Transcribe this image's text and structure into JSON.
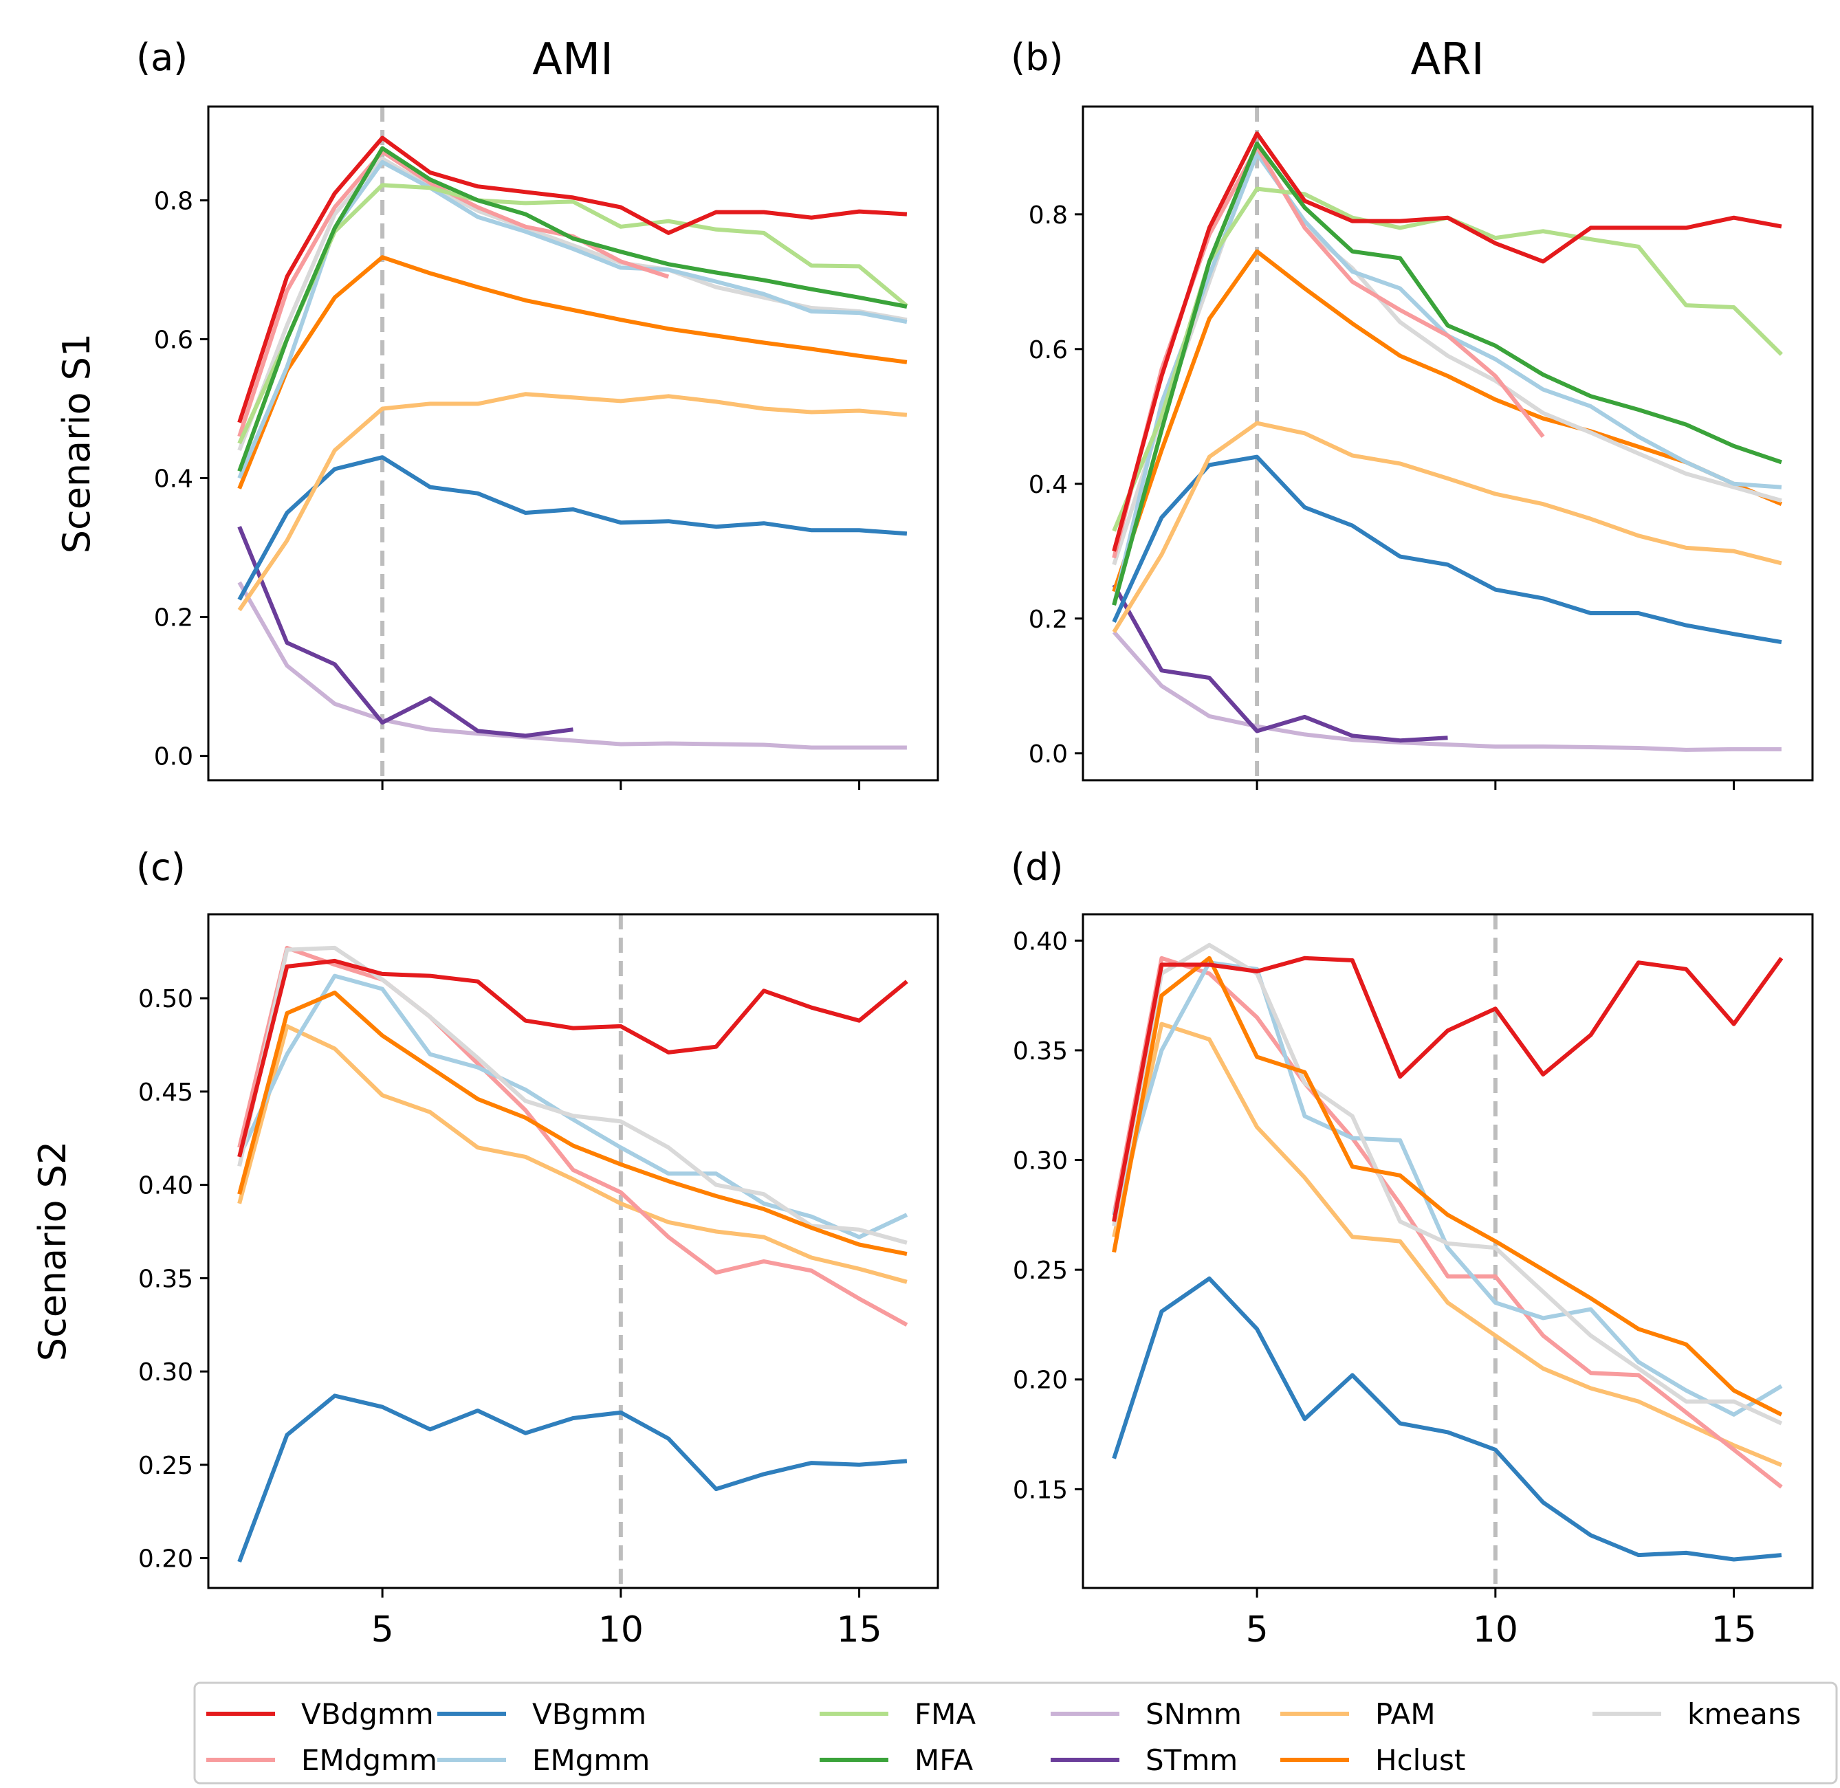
{
  "chart_data": {
    "type": "line",
    "x": [
      2,
      3,
      4,
      5,
      6,
      7,
      8,
      9,
      10,
      11,
      12,
      13,
      14,
      15,
      16
    ],
    "xticks": [
      "5",
      "10",
      "15"
    ],
    "xlim": [
      1.35,
      16.65
    ],
    "row_labels": [
      "Scenario S1",
      "Scenario S2"
    ],
    "series_styles": {
      "VBdgmm": "#e41a1c",
      "EMdgmm": "#f89b9d",
      "VBgmm": "#2f7fbd",
      "EMgmm": "#a6cee3",
      "FMA": "#b2df8a",
      "MFA": "#3aa33a",
      "SNmm": "#cab2d6",
      "STmm": "#6a3d9a",
      "PAM": "#fdbf6f",
      "Hclust": "#ff7f00",
      "kmeans": "#d9d9d9"
    },
    "legend": {
      "placement": "bottom",
      "entries": [
        "VBdgmm",
        "EMdgmm",
        "VBgmm",
        "EMgmm",
        "FMA",
        "MFA",
        "SNmm",
        "STmm",
        "PAM",
        "Hclust",
        "kmeans"
      ]
    },
    "panels": [
      {
        "letter": "(a)",
        "title": "AMI",
        "ylabel": "Scenario S1",
        "ylim": [
          -0.035,
          0.935
        ],
        "yticks": [
          "0.0",
          "0.2",
          "0.4",
          "0.6",
          "0.8"
        ],
        "yvals": [
          0.0,
          0.2,
          0.4,
          0.6,
          0.8
        ],
        "vline": 5,
        "series": [
          {
            "name": "SNmm",
            "values": [
              0.25,
              0.13,
              0.075,
              0.052,
              0.038,
              0.032,
              0.027,
              0.022,
              0.017,
              0.018,
              0.017,
              0.016,
              0.012,
              0.012,
              0.012
            ]
          },
          {
            "name": "STmm",
            "values": [
              0.33,
              0.163,
              0.132,
              0.048,
              0.083,
              0.036,
              0.029,
              0.038
            ]
          },
          {
            "name": "VBgmm",
            "values": [
              0.225,
              0.35,
              0.413,
              0.43,
              0.387,
              0.378,
              0.35,
              0.355,
              0.336,
              0.338,
              0.33,
              0.335,
              0.325,
              0.325,
              0.32
            ]
          },
          {
            "name": "PAM",
            "values": [
              0.21,
              0.31,
              0.44,
              0.5,
              0.507,
              0.507,
              0.521,
              0.516,
              0.511,
              0.518,
              0.51,
              0.5,
              0.495,
              0.497,
              0.491
            ]
          },
          {
            "name": "Hclust",
            "values": [
              0.385,
              0.555,
              0.66,
              0.718,
              0.695,
              0.675,
              0.656,
              0.642,
              0.628,
              0.615,
              0.605,
              0.595,
              0.586,
              0.576,
              0.567
            ]
          },
          {
            "name": "kmeans",
            "values": [
              0.44,
              0.62,
              0.78,
              0.86,
              0.82,
              0.785,
              0.76,
              0.735,
              0.71,
              0.7,
              0.675,
              0.66,
              0.645,
              0.64,
              0.628
            ]
          },
          {
            "name": "EMgmm",
            "values": [
              0.4,
              0.56,
              0.76,
              0.855,
              0.818,
              0.776,
              0.755,
              0.73,
              0.703,
              0.7,
              0.683,
              0.665,
              0.64,
              0.638,
              0.625
            ]
          },
          {
            "name": "EMdgmm",
            "values": [
              0.46,
              0.67,
              0.79,
              0.87,
              0.825,
              0.79,
              0.762,
              0.748,
              0.712,
              0.69
            ]
          },
          {
            "name": "FMA",
            "values": [
              0.45,
              0.6,
              0.755,
              0.822,
              0.818,
              0.8,
              0.796,
              0.798,
              0.762,
              0.77,
              0.758,
              0.753,
              0.706,
              0.705,
              0.648
            ]
          },
          {
            "name": "MFA",
            "values": [
              0.41,
              0.6,
              0.76,
              0.875,
              0.83,
              0.8,
              0.78,
              0.745,
              0.726,
              0.708,
              0.696,
              0.685,
              0.672,
              0.66,
              0.647
            ]
          },
          {
            "name": "VBdgmm",
            "values": [
              0.48,
              0.69,
              0.81,
              0.89,
              0.84,
              0.82,
              0.812,
              0.804,
              0.79,
              0.753,
              0.783,
              0.783,
              0.775,
              0.784,
              0.78
            ]
          }
        ]
      },
      {
        "letter": "(b)",
        "title": "ARI",
        "ylabel": "",
        "ylim": [
          -0.04,
          0.96
        ],
        "yticks": [
          "0.0",
          "0.2",
          "0.4",
          "0.6",
          "0.8"
        ],
        "yvals": [
          0.0,
          0.2,
          0.4,
          0.6,
          0.8
        ],
        "vline": 5,
        "series": [
          {
            "name": "SNmm",
            "values": [
              0.18,
              0.1,
              0.055,
              0.04,
              0.028,
              0.02,
              0.016,
              0.013,
              0.01,
              0.01,
              0.009,
              0.008,
              0.005,
              0.006,
              0.006
            ]
          },
          {
            "name": "STmm",
            "values": [
              0.25,
              0.123,
              0.112,
              0.033,
              0.054,
              0.026,
              0.019,
              0.023
            ]
          },
          {
            "name": "VBgmm",
            "values": [
              0.195,
              0.35,
              0.428,
              0.44,
              0.365,
              0.338,
              0.292,
              0.28,
              0.243,
              0.23,
              0.208,
              0.208,
              0.19,
              0.177,
              0.165
            ]
          },
          {
            "name": "PAM",
            "values": [
              0.18,
              0.295,
              0.44,
              0.49,
              0.475,
              0.442,
              0.43,
              0.408,
              0.385,
              0.37,
              0.348,
              0.323,
              0.305,
              0.3,
              0.282
            ]
          },
          {
            "name": "Hclust",
            "values": [
              0.24,
              0.45,
              0.645,
              0.745,
              0.69,
              0.638,
              0.59,
              0.56,
              0.525,
              0.497,
              0.478,
              0.455,
              0.432,
              0.4,
              0.37
            ]
          },
          {
            "name": "kmeans",
            "values": [
              0.28,
              0.5,
              0.7,
              0.9,
              0.78,
              0.72,
              0.64,
              0.59,
              0.553,
              0.505,
              0.476,
              0.445,
              0.415,
              0.395,
              0.375
            ]
          },
          {
            "name": "EMgmm",
            "values": [
              0.22,
              0.52,
              0.71,
              0.89,
              0.79,
              0.715,
              0.69,
              0.62,
              0.585,
              0.54,
              0.515,
              0.47,
              0.432,
              0.4,
              0.395
            ]
          },
          {
            "name": "EMdgmm",
            "values": [
              0.29,
              0.57,
              0.77,
              0.9,
              0.78,
              0.7,
              0.658,
              0.62,
              0.56,
              0.47
            ]
          },
          {
            "name": "FMA",
            "values": [
              0.33,
              0.5,
              0.73,
              0.838,
              0.83,
              0.795,
              0.78,
              0.795,
              0.765,
              0.775,
              0.763,
              0.752,
              0.665,
              0.662,
              0.592
            ]
          },
          {
            "name": "MFA",
            "values": [
              0.22,
              0.48,
              0.73,
              0.905,
              0.81,
              0.745,
              0.735,
              0.635,
              0.605,
              0.562,
              0.53,
              0.51,
              0.488,
              0.456,
              0.432
            ]
          },
          {
            "name": "VBdgmm",
            "values": [
              0.3,
              0.56,
              0.78,
              0.92,
              0.82,
              0.79,
              0.79,
              0.795,
              0.757,
              0.73,
              0.78,
              0.78,
              0.78,
              0.795,
              0.782
            ]
          }
        ]
      },
      {
        "letter": "(c)",
        "title": "",
        "ylabel": "Scenario S2",
        "ylim": [
          0.184,
          0.545
        ],
        "yticks": [
          "0.20",
          "0.25",
          "0.30",
          "0.35",
          "0.40",
          "0.45",
          "0.50"
        ],
        "yvals": [
          0.2,
          0.25,
          0.3,
          0.35,
          0.4,
          0.45,
          0.5
        ],
        "vline": 10,
        "series": [
          {
            "name": "VBgmm",
            "values": [
              0.198,
              0.266,
              0.287,
              0.281,
              0.269,
              0.279,
              0.267,
              0.275,
              0.278,
              0.264,
              0.237,
              0.245,
              0.251,
              0.25,
              0.252
            ]
          },
          {
            "name": "PAM",
            "values": [
              0.39,
              0.485,
              0.473,
              0.448,
              0.439,
              0.42,
              0.415,
              0.403,
              0.39,
              0.38,
              0.375,
              0.372,
              0.361,
              0.355,
              0.348
            ]
          },
          {
            "name": "EMdgmm",
            "values": [
              0.42,
              0.527,
              0.518,
              0.51,
              0.49,
              0.465,
              0.44,
              0.408,
              0.396,
              0.372,
              0.353,
              0.359,
              0.354,
              0.339,
              0.325
            ]
          },
          {
            "name": "EMgmm",
            "values": [
              0.415,
              0.47,
              0.512,
              0.505,
              0.47,
              0.463,
              0.451,
              0.435,
              0.42,
              0.406,
              0.406,
              0.39,
              0.383,
              0.372,
              0.384
            ]
          },
          {
            "name": "kmeans",
            "values": [
              0.41,
              0.526,
              0.527,
              0.51,
              0.49,
              0.468,
              0.445,
              0.437,
              0.434,
              0.42,
              0.4,
              0.395,
              0.378,
              0.376,
              0.369
            ]
          },
          {
            "name": "Hclust",
            "values": [
              0.395,
              0.492,
              0.503,
              0.48,
              0.463,
              0.446,
              0.436,
              0.421,
              0.411,
              0.402,
              0.394,
              0.387,
              0.377,
              0.368,
              0.363
            ]
          },
          {
            "name": "VBdgmm",
            "values": [
              0.415,
              0.517,
              0.52,
              0.513,
              0.512,
              0.509,
              0.488,
              0.484,
              0.485,
              0.471,
              0.474,
              0.504,
              0.495,
              0.488,
              0.509
            ]
          }
        ]
      },
      {
        "letter": "(d)",
        "title": "",
        "ylabel": "",
        "ylim": [
          0.105,
          0.412
        ],
        "yticks": [
          "0.15",
          "0.20",
          "0.25",
          "0.30",
          "0.35",
          "0.40"
        ],
        "yvals": [
          0.15,
          0.2,
          0.25,
          0.3,
          0.35,
          0.4
        ],
        "vline": 10,
        "series": [
          {
            "name": "VBgmm",
            "values": [
              0.164,
              0.231,
              0.246,
              0.223,
              0.182,
              0.202,
              0.18,
              0.176,
              0.168,
              0.144,
              0.129,
              0.12,
              0.121,
              0.118,
              0.12
            ]
          },
          {
            "name": "PAM",
            "values": [
              0.265,
              0.362,
              0.355,
              0.315,
              0.292,
              0.265,
              0.263,
              0.235,
              0.22,
              0.205,
              0.196,
              0.19,
              0.18,
              0.17,
              0.161
            ]
          },
          {
            "name": "EMdgmm",
            "values": [
              0.275,
              0.392,
              0.385,
              0.365,
              0.335,
              0.31,
              0.28,
              0.247,
              0.247,
              0.22,
              0.203,
              0.202,
              0.185,
              0.168,
              0.151
            ]
          },
          {
            "name": "EMgmm",
            "values": [
              0.275,
              0.35,
              0.39,
              0.387,
              0.32,
              0.31,
              0.309,
              0.26,
              0.235,
              0.228,
              0.232,
              0.208,
              0.195,
              0.184,
              0.197
            ]
          },
          {
            "name": "kmeans",
            "values": [
              0.27,
              0.385,
              0.398,
              0.385,
              0.335,
              0.32,
              0.272,
              0.262,
              0.26,
              0.24,
              0.22,
              0.205,
              0.19,
              0.19,
              0.18
            ]
          },
          {
            "name": "Hclust",
            "values": [
              0.258,
              0.375,
              0.392,
              0.347,
              0.34,
              0.297,
              0.293,
              0.275,
              0.263,
              0.25,
              0.237,
              0.223,
              0.216,
              0.195,
              0.184
            ]
          },
          {
            "name": "VBdgmm",
            "values": [
              0.272,
              0.389,
              0.389,
              0.386,
              0.392,
              0.391,
              0.338,
              0.359,
              0.369,
              0.339,
              0.357,
              0.39,
              0.387,
              0.362,
              0.392
            ]
          }
        ]
      }
    ]
  }
}
